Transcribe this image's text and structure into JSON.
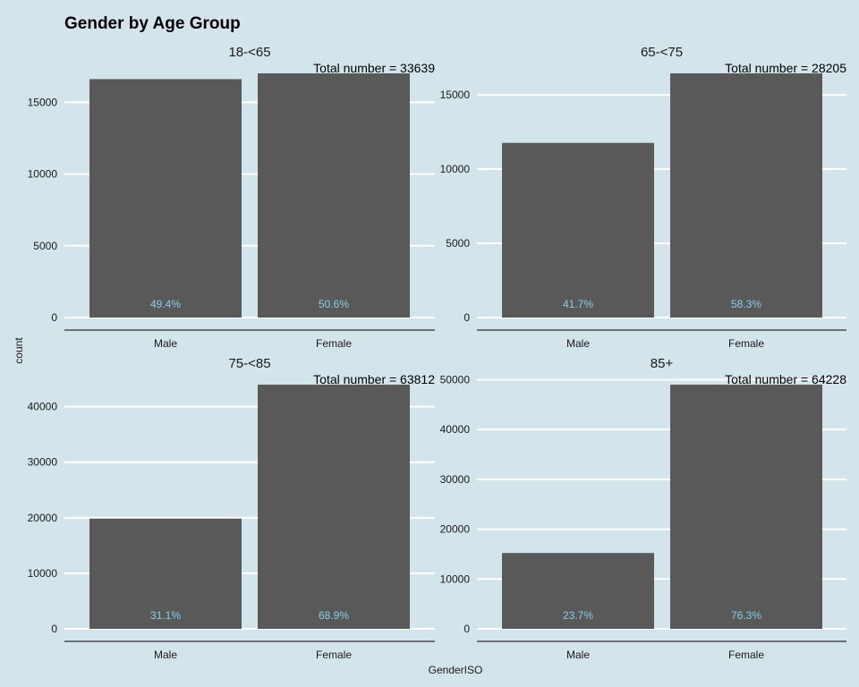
{
  "chart_data": {
    "type": "bar",
    "title": "Gender by Age Group",
    "xlabel": "GenderISO",
    "ylabel": "count",
    "categories": [
      "Male",
      "Female"
    ],
    "bar_color": "#595959",
    "pct_color": "#87ceeb",
    "grid": true,
    "facets": [
      {
        "name": "18-<65",
        "total_label": "Total number = 33639",
        "values": [
          16618,
          17021
        ],
        "pct_labels": [
          "49.4%",
          "50.6%"
        ],
        "ylim": [
          0,
          17021
        ],
        "yticks": [
          0,
          5000,
          10000,
          15000
        ]
      },
      {
        "name": "65-<75",
        "total_label": "Total number = 28205",
        "values": [
          11761,
          16444
        ],
        "pct_labels": [
          "41.7%",
          "58.3%"
        ],
        "ylim": [
          0,
          16444
        ],
        "yticks": [
          0,
          5000,
          10000,
          15000
        ]
      },
      {
        "name": "75-<85",
        "total_label": "Total number = 63812",
        "values": [
          19846,
          43966
        ],
        "pct_labels": [
          "31.1%",
          "68.9%"
        ],
        "ylim": [
          0,
          43966
        ],
        "yticks": [
          0,
          10000,
          20000,
          30000,
          40000
        ]
      },
      {
        "name": "85+",
        "total_label": "Total number = 64228",
        "values": [
          15222,
          49006
        ],
        "pct_labels": [
          "23.7%",
          "76.3%"
        ],
        "ylim": [
          0,
          49006
        ],
        "yticks": [
          0,
          10000,
          20000,
          30000,
          40000,
          50000
        ]
      }
    ]
  }
}
